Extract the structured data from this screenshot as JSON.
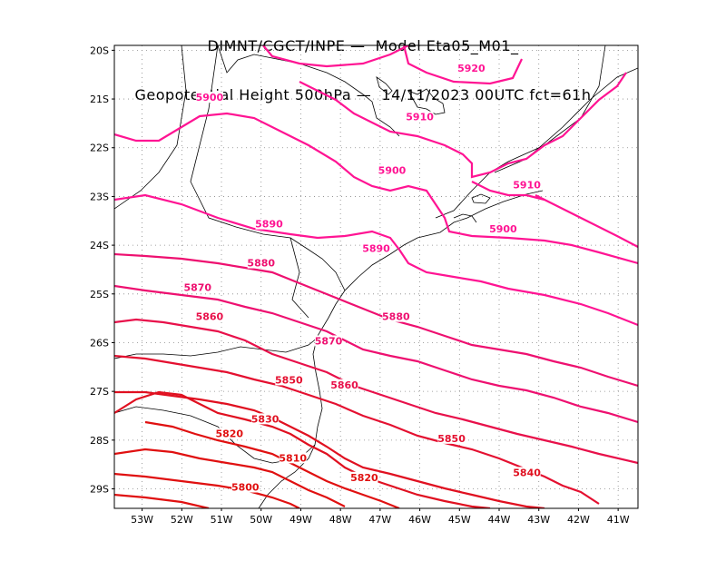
{
  "title_line1": "DIMNT/CGCT/INPE —  Model Eta05_M01_",
  "title_line2": "Geopotential Height 500hPa —  14/11/2023 00UTC fct=61h",
  "map_data": {
    "lon_range": [
      -53.7,
      -40.5
    ],
    "lat_range": [
      -29.4,
      -19.9
    ],
    "lat_ticks": [
      "20S",
      "21S",
      "22S",
      "23S",
      "24S",
      "25S",
      "26S",
      "27S",
      "28S",
      "29S"
    ],
    "lon_ticks": [
      "53W",
      "52W",
      "51W",
      "50W",
      "49W",
      "48W",
      "47W",
      "46W",
      "45W",
      "44W",
      "43W",
      "42W",
      "41W"
    ],
    "grid": "dotted",
    "contour_interval": 10,
    "contours": [
      {
        "level": 5920,
        "color": "#ff1493",
        "label": "5920",
        "label_at": [
          -44.7,
          -20.4
        ]
      },
      {
        "level": 5910,
        "color": "#ff1493",
        "label": "5910",
        "label_at": [
          -46.0,
          -21.4
        ]
      },
      {
        "level": 5910,
        "color": "#ff1493",
        "label": "5910",
        "label_at": [
          -43.3,
          -22.8
        ]
      },
      {
        "level": 5900,
        "color": "#ff1493",
        "label": "5900",
        "label_at": [
          -51.3,
          -21.0
        ]
      },
      {
        "level": 5900,
        "color": "#ff1493",
        "label": "5900",
        "label_at": [
          -46.7,
          -22.5
        ]
      },
      {
        "level": 5900,
        "color": "#ff1493",
        "label": "5900",
        "label_at": [
          -43.9,
          -23.7
        ]
      },
      {
        "level": 5890,
        "color": "#ff1493",
        "label": "5890",
        "label_at": [
          -49.8,
          -23.6
        ]
      },
      {
        "level": 5890,
        "color": "#ff1493",
        "label": "5890",
        "label_at": [
          -47.1,
          -24.1
        ]
      },
      {
        "level": 5880,
        "color": "#ee1070",
        "label": "5880",
        "label_at": [
          -50.0,
          -24.4
        ]
      },
      {
        "level": 5880,
        "color": "#ee1070",
        "label": "5880",
        "label_at": [
          -46.6,
          -25.5
        ]
      },
      {
        "level": 5870,
        "color": "#ee1070",
        "label": "5870",
        "label_at": [
          -51.6,
          -24.9
        ]
      },
      {
        "level": 5870,
        "color": "#ee1070",
        "label": "5870",
        "label_at": [
          -48.3,
          -26.0
        ]
      },
      {
        "level": 5860,
        "color": "#e8104a",
        "label": "5860",
        "label_at": [
          -51.3,
          -25.5
        ]
      },
      {
        "level": 5860,
        "color": "#e8104a",
        "label": "5860",
        "label_at": [
          -47.9,
          -26.9
        ]
      },
      {
        "level": 5850,
        "color": "#e41030",
        "label": "5850",
        "label_at": [
          -49.3,
          -26.8
        ]
      },
      {
        "level": 5850,
        "color": "#e41030",
        "label": "5850",
        "label_at": [
          -45.2,
          -28.0
        ]
      },
      {
        "level": 5840,
        "color": "#e01020",
        "label": "5840",
        "label_at": [
          -43.3,
          -28.7
        ]
      },
      {
        "level": 5830,
        "color": "#e01020",
        "label": "5830",
        "label_at": [
          -49.9,
          -27.6
        ]
      },
      {
        "level": 5820,
        "color": "#e01010",
        "label": "5820",
        "label_at": [
          -50.8,
          -27.9
        ]
      },
      {
        "level": 5820,
        "color": "#e01010",
        "label": "5820",
        "label_at": [
          -47.4,
          -28.8
        ]
      },
      {
        "level": 5810,
        "color": "#e01010",
        "label": "5810",
        "label_at": [
          -49.2,
          -28.4
        ]
      },
      {
        "level": 5800,
        "color": "#e01010",
        "label": "5800",
        "label_at": [
          -50.4,
          -29.0
        ]
      }
    ]
  }
}
